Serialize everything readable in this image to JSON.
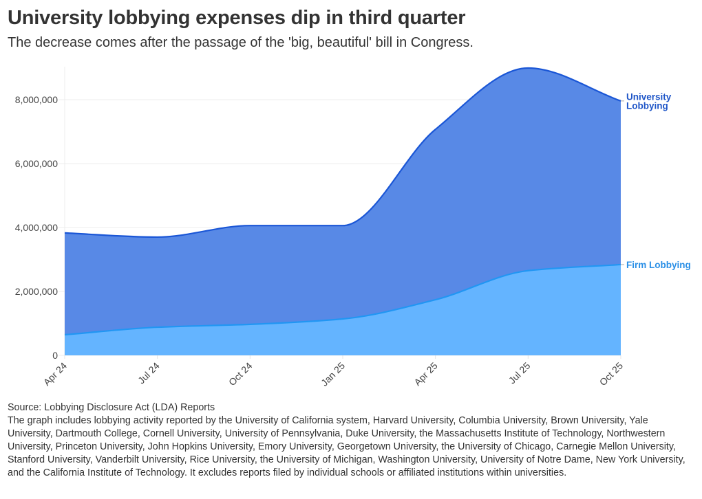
{
  "header": {
    "title": "University lobbying expenses dip in third quarter",
    "subtitle": "The decrease comes after the passage of the 'big, beautiful' bill in Congress."
  },
  "chart_data": {
    "type": "area",
    "stacked": false,
    "title": "University lobbying expenses dip in third quarter",
    "subtitle": "The decrease comes after the passage of the 'big, beautiful' bill in Congress.",
    "xlabel": "",
    "ylabel": "",
    "categories": [
      "Apr 24",
      "Jul 24",
      "Oct 24",
      "Jan 25",
      "Apr 25",
      "Jul 25",
      "Oct 25"
    ],
    "series": [
      {
        "name": "University Lobbying",
        "label_lines": [
          "University",
          "Lobbying"
        ],
        "values": [
          3830000,
          3700000,
          4060000,
          4060000,
          7070000,
          8990000,
          7960000
        ],
        "fill": "#5889E6",
        "line": "#1A56D6",
        "label_color": "#1F56C8"
      },
      {
        "name": "Firm Lobbying",
        "label_lines": [
          "Firm Lobbying"
        ],
        "values": [
          645000,
          880000,
          970000,
          1140000,
          1740000,
          2650000,
          2840000
        ],
        "fill": "#64B4FF",
        "line": "#2196F3",
        "label_color": "#2A8FE6"
      }
    ],
    "yticks": [
      0,
      2000000,
      4000000,
      6000000,
      8000000
    ],
    "ytick_labels": [
      "0",
      "2,000,000",
      "4,000,000",
      "6,000,000",
      "8,000,000"
    ],
    "ylim": [
      0,
      9000000
    ],
    "grid": true,
    "legend": "direct labels at right end of series"
  },
  "footer": {
    "source": "Source: Lobbying Disclosure Act (LDA) Reports",
    "note": "The graph includes lobbying activity reported by the University of California system, Harvard University, Columbia University, Brown University, Yale University, Dartmouth College, Cornell University, University of Pennsylvania, Duke University, the Massachusetts Institute of Technology, Northwestern University, Princeton University, John Hopkins University, Emory University, Georgetown University, the University of Chicago, Carnegie Mellon University, Stanford University, Vanderbilt University, Rice University, the University of Michigan, Washington University, University of Notre Dame, New York University, and the California Institute of Technology. It excludes reports filed by individual schools or affiliated institutions within universities."
  }
}
